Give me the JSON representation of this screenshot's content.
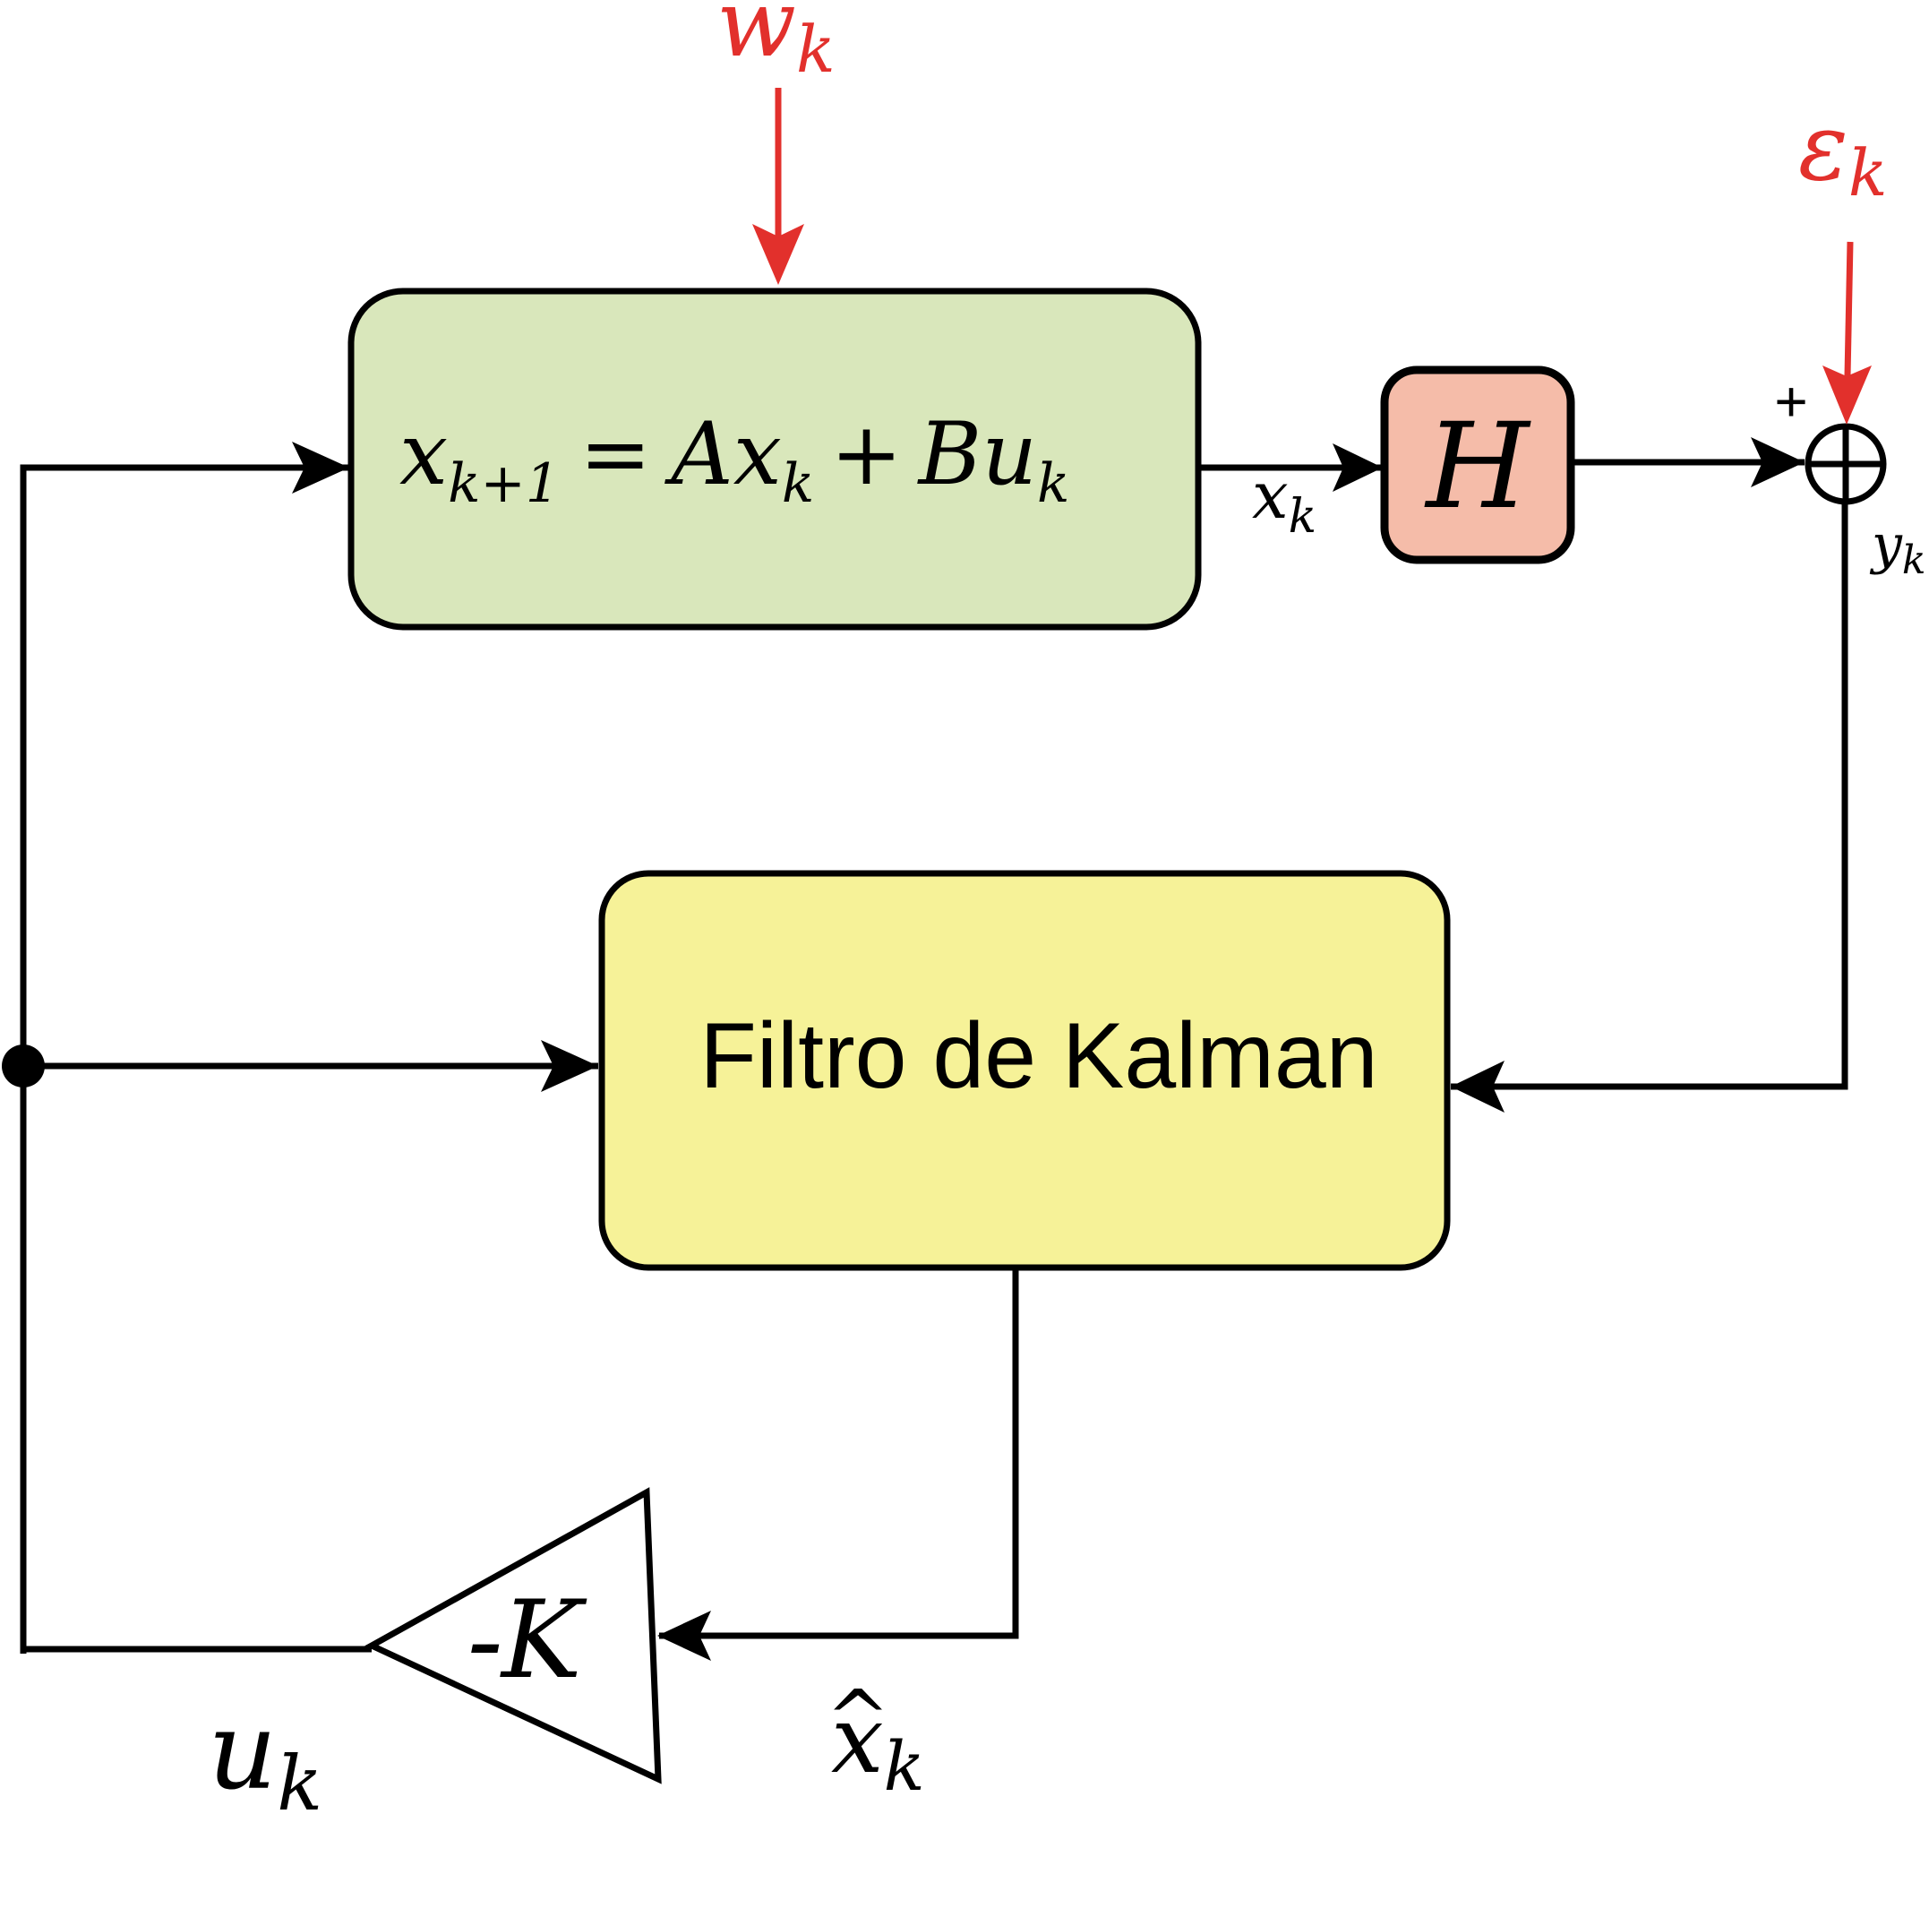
{
  "plant_block": {
    "lhs_var": "x",
    "lhs_sub": "k+1",
    "equals": "=",
    "term1_coef": "A",
    "term1_var": "x",
    "term1_sub": "k",
    "plus": "+",
    "term2_coef": "B",
    "term2_var": "u",
    "term2_sub": "k"
  },
  "output_block": {
    "label": "H"
  },
  "filter_block": {
    "label": "Filtro de Kalman"
  },
  "gain_block": {
    "label_sign": "-",
    "label_var": "K"
  },
  "sum_junction": {
    "plus_sign": "+"
  },
  "signals": {
    "process_noise": {
      "var": "w",
      "sub": "k"
    },
    "measurement_noise": {
      "var": "ε",
      "sub": "k"
    },
    "state": {
      "var": "x",
      "sub": "k"
    },
    "measurement": {
      "var": "y",
      "sub": "k"
    },
    "estimate": {
      "hat": "^",
      "var": "x",
      "sub": "k"
    },
    "control": {
      "var": "u",
      "sub": "k"
    }
  },
  "colors": {
    "plant_fill": "#d9e7bb",
    "output_fill": "#f5bca9",
    "filter_fill": "#f6f298",
    "noise": "#e2302c",
    "stroke": "#000000"
  }
}
